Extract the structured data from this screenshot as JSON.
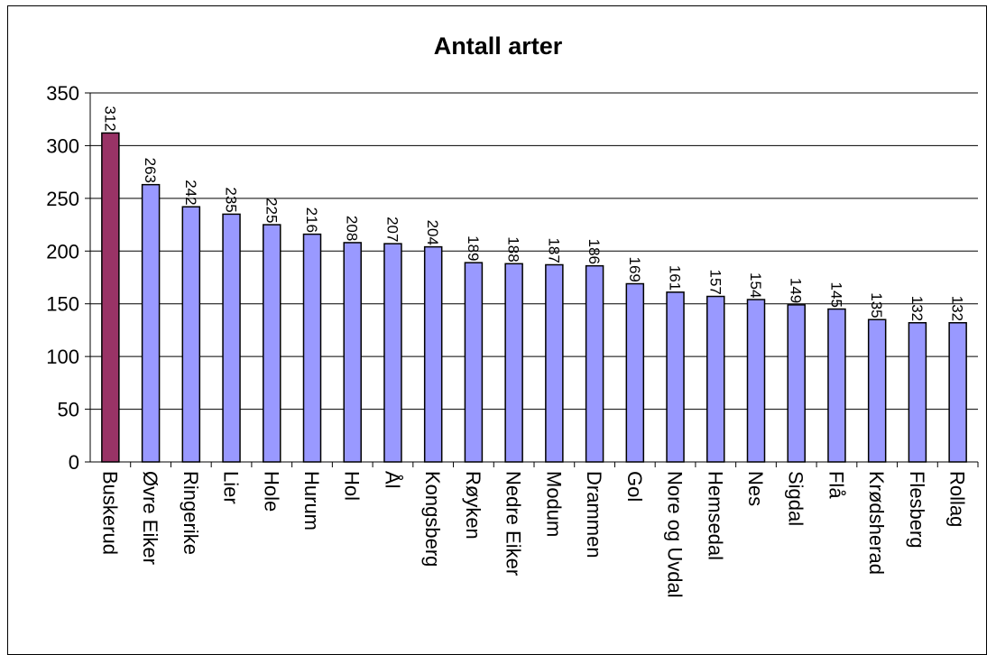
{
  "chart_data": {
    "type": "bar",
    "title": "Antall arter",
    "xlabel": "",
    "ylabel": "",
    "ylim": [
      0,
      350
    ],
    "yticks": [
      0,
      50,
      100,
      150,
      200,
      250,
      300,
      350
    ],
    "grid": true,
    "legend": "none",
    "categories": [
      "Buskerud",
      "Øvre Eiker",
      "Ringerike",
      "Lier",
      "Hole",
      "Hurum",
      "Hol",
      "Ål",
      "Kongsberg",
      "Røyken",
      "Nedre Eiker",
      "Modum",
      "Drammen",
      "Gol",
      "Nore og Uvdal",
      "Hemsedal",
      "Nes",
      "Sigdal",
      "Flå",
      "Krødsherad",
      "Flesberg",
      "Rollag"
    ],
    "values": [
      312,
      263,
      242,
      235,
      225,
      216,
      208,
      207,
      204,
      189,
      188,
      187,
      186,
      169,
      161,
      157,
      154,
      149,
      145,
      135,
      132,
      132
    ],
    "data_labels": [
      "312",
      "263",
      "242",
      "235",
      "225",
      "216",
      "208",
      "207",
      "204",
      "189",
      "188",
      "187",
      "186",
      "169",
      "161",
      "157",
      "154",
      "149",
      "145",
      "135",
      "132",
      "132"
    ],
    "colors": {
      "highlight": "#993366",
      "bar": "#9999ff",
      "stroke": "#000000",
      "grid": "#000000"
    },
    "highlight_index": 0
  }
}
